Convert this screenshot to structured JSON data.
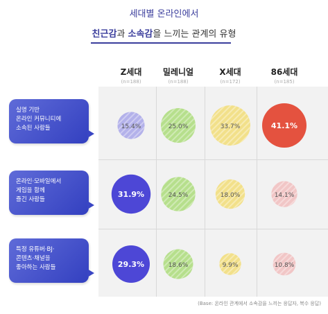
{
  "title": {
    "line1": "세대별 온라인에서",
    "line2_a": "친근감",
    "line2_b": "과 ",
    "line2_c": "소속감",
    "line2_d": "을 느끼는 관계의 유형"
  },
  "colors": {
    "purple": "#b3b1ea",
    "green": "#b6df8c",
    "yellow": "#f2e08a",
    "pink": "#f1c6c6",
    "blue_strong": "#4d47d6",
    "red_strong": "#e4523f"
  },
  "chart_data": {
    "type": "bubble",
    "columns": [
      {
        "name": "Z세대",
        "n": "(n=188)"
      },
      {
        "name": "밀레니얼",
        "n": "(n=188)"
      },
      {
        "name": "X세대",
        "n": "(n=172)"
      },
      {
        "name": "86세대",
        "n": "(n=185)"
      }
    ],
    "rows": [
      {
        "label": "실명 기반\n온라인 커뮤니티에\n소속된 사람들",
        "values": [
          15.4,
          25.0,
          33.7,
          41.1
        ],
        "labels": [
          "15.4%",
          "25.0%",
          "33.7%",
          "41.1%"
        ],
        "highlight": 3
      },
      {
        "label": "온라인·모바일에서\n게임을 함께\n즐긴 사람들",
        "values": [
          31.9,
          24.5,
          18.0,
          14.1
        ],
        "labels": [
          "31.9%",
          "24.5%",
          "18.0%",
          "14.1%"
        ],
        "highlight": 0
      },
      {
        "label": "특정 유튜버·BJ·\n콘텐츠·채널을\n좋아하는 사람들",
        "values": [
          29.3,
          18.6,
          9.9,
          10.8
        ],
        "labels": [
          "29.3%",
          "18.6%",
          "9.9%",
          "10.8%"
        ],
        "highlight": 0
      }
    ],
    "column_colors": [
      "purple",
      "green",
      "yellow",
      "pink"
    ],
    "highlight_colors": [
      "blue_strong",
      "green",
      "yellow",
      "red_strong"
    ]
  },
  "base_note": "(Base: 온라인 관계에서 소속감을 느끼는 응답자, 복수 응답)"
}
